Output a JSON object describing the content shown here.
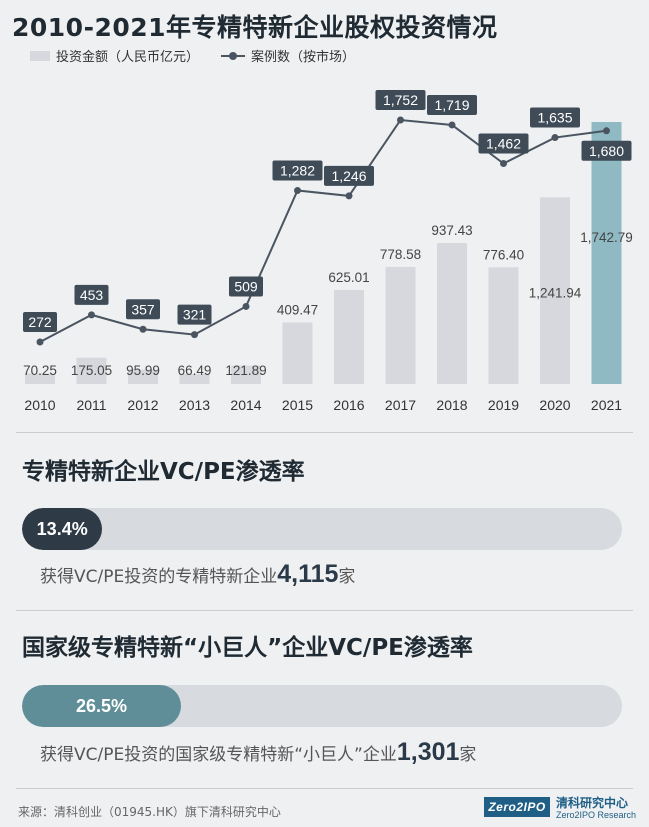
{
  "chart_data": {
    "type": "bar+line",
    "title": "2010-2021年专精特新企业股权投资情况",
    "legend": [
      "投资金额（人民币亿元）",
      "案例数（按市场）"
    ],
    "categories": [
      "2010",
      "2011",
      "2012",
      "2013",
      "2014",
      "2015",
      "2016",
      "2017",
      "2018",
      "2019",
      "2020",
      "2021"
    ],
    "series": [
      {
        "name": "投资金额（人民币亿元）",
        "type": "bar",
        "values": [
          70.25,
          175.05,
          95.99,
          66.49,
          121.89,
          409.47,
          625.01,
          778.58,
          937.43,
          776.4,
          1241.94,
          1742.79
        ],
        "labels": [
          "70.25",
          "175.05",
          "95.99",
          "66.49",
          "121.89",
          "409.47",
          "625.01",
          "778.58",
          "937.43",
          "776.40",
          "1,241.94",
          "1,742.79"
        ]
      },
      {
        "name": "案例数（按市场）",
        "type": "line",
        "values": [
          272,
          453,
          357,
          321,
          509,
          1282,
          1246,
          1752,
          1719,
          1462,
          1635,
          1680
        ],
        "labels": [
          "272",
          "453",
          "357",
          "321",
          "509",
          "1,282",
          "1,246",
          "1,752",
          "1,719",
          "1,462",
          "1,635",
          "1,680"
        ]
      }
    ],
    "colors": {
      "bar": "#d6d8dd",
      "bar_highlight": "#8fbac4",
      "line": "#4a5561",
      "label_box": "#3f4b57"
    }
  },
  "section1": {
    "title": "专精特新企业VC/PE渗透率",
    "rate": 0.134,
    "rate_label": "13.4%",
    "note_prefix": "获得VC/PE投资的专精特新企业",
    "note_number": "4,115",
    "note_suffix": "家"
  },
  "section2": {
    "title": "国家级专精特新“小巨人”企业VC/PE渗透率",
    "rate": 0.265,
    "rate_label": "26.5%",
    "note_prefix": "获得VC/PE投资的国家级专精特新“小巨人”企业",
    "note_number": "1,301",
    "note_suffix": "家"
  },
  "footer": {
    "source": "来源：清科创业（01945.HK）旗下清科研究中心",
    "logo": "Zero2IPO",
    "brand": "清科研究中心",
    "brand_sub": "Zero2IPO Research"
  }
}
